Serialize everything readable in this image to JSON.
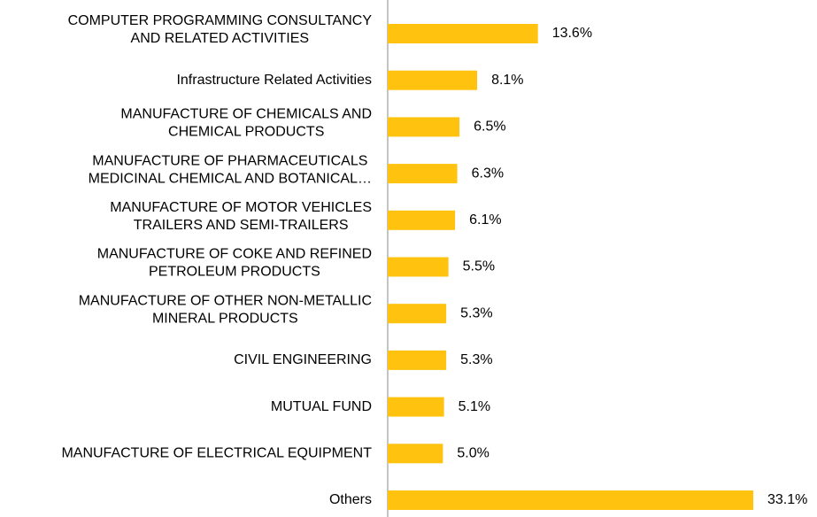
{
  "chart_data": {
    "type": "bar",
    "orientation": "horizontal",
    "color": "#ffc20e",
    "categories": [
      [
        "COMPUTER PROGRAMMING  CONSULTANCY",
        "AND RELATED ACTIVITIES"
      ],
      [
        "Infrastructure Related Activities"
      ],
      [
        "MANUFACTURE OF CHEMICALS AND",
        "CHEMICAL PRODUCTS"
      ],
      [
        "MANUFACTURE OF PHARMACEUTICALS",
        "MEDICINAL CHEMICAL AND BOTANICAL…"
      ],
      [
        "MANUFACTURE OF MOTOR VEHICLES",
        "TRAILERS AND SEMI-TRAILERS"
      ],
      [
        "MANUFACTURE OF COKE AND REFINED",
        "PETROLEUM PRODUCTS"
      ],
      [
        "MANUFACTURE OF OTHER NON-METALLIC",
        "MINERAL PRODUCTS"
      ],
      [
        "CIVIL ENGINEERING"
      ],
      [
        "MUTUAL FUND"
      ],
      [
        "MANUFACTURE OF ELECTRICAL EQUIPMENT"
      ],
      [
        "Others"
      ]
    ],
    "values": [
      13.6,
      8.1,
      6.5,
      6.3,
      6.1,
      5.5,
      5.3,
      5.3,
      5.1,
      5.0,
      33.1
    ],
    "value_labels": [
      "13.6%",
      "8.1%",
      "6.5%",
      "6.3%",
      "6.1%",
      "5.5%",
      "5.3%",
      "5.3%",
      "5.1%",
      "5.0%",
      "33.1%"
    ]
  }
}
